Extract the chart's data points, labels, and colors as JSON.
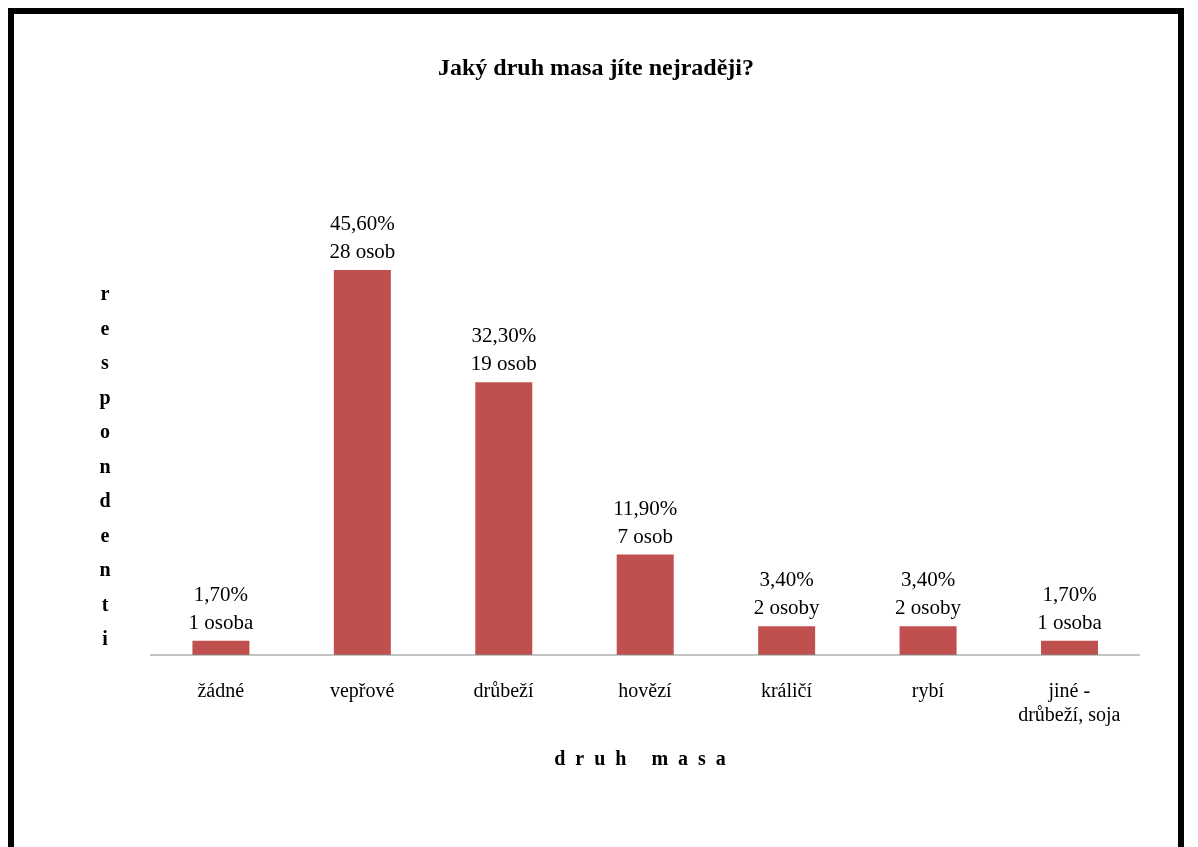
{
  "chart_data": {
    "type": "bar",
    "title": "Jaký druh masa jíte nejraději?",
    "xlabel": "druh masa",
    "ylabel": "respondenti",
    "categories": [
      "žádné",
      "vepřové",
      "drůbeží",
      "hovězí",
      "králičí",
      "rybí",
      "jiné - drůbeží, soja"
    ],
    "values": [
      1.7,
      45.6,
      32.3,
      11.9,
      3.4,
      3.4,
      1.7
    ],
    "value_labels": [
      "1,70%\n1 osoba",
      "45,60%\n28 osob",
      "32,30%\n19 osob",
      "11,90%\n7 osob",
      "3,40%\n2 osoby",
      "3,40%\n2 osoby",
      "1,70%\n1 osoba"
    ],
    "color": "#c0504d"
  }
}
